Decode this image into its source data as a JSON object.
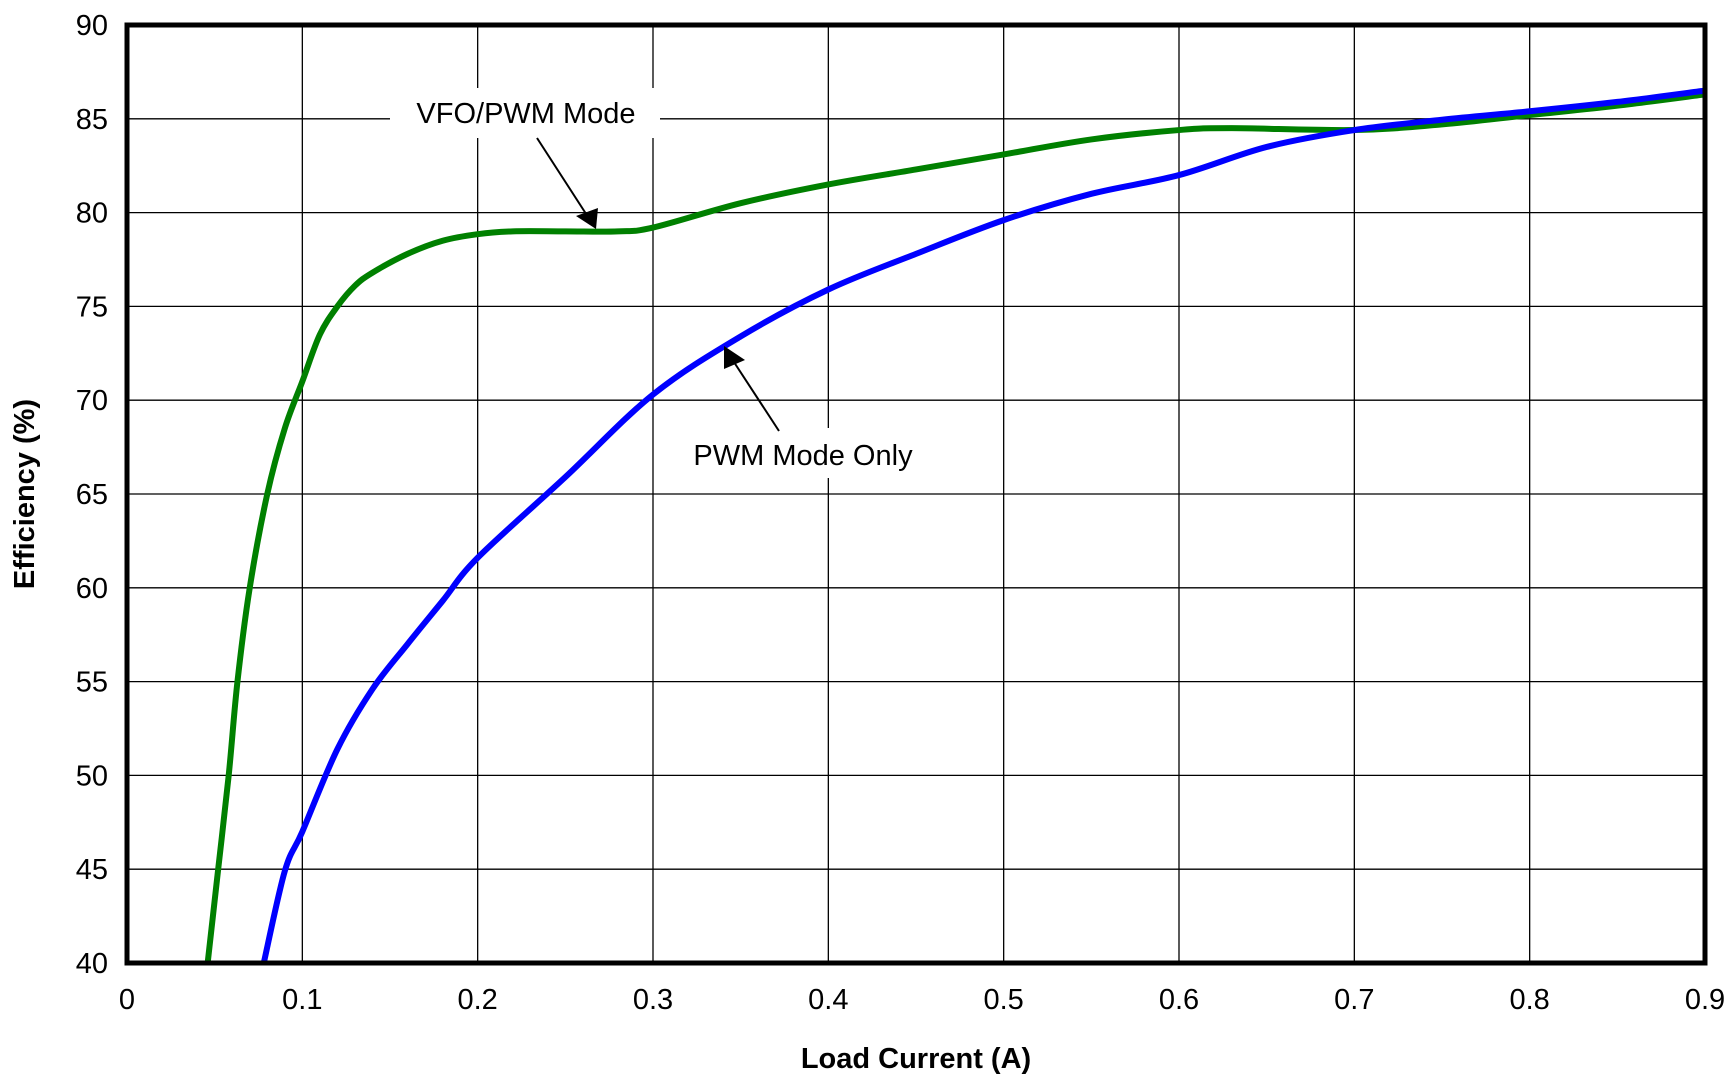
{
  "chart_data": {
    "type": "line",
    "title": "",
    "xlabel": "Load Current (A)",
    "ylabel": "Efficiency (%)",
    "xlim": [
      0,
      0.9
    ],
    "ylim": [
      40,
      90
    ],
    "xticks": [
      "0",
      "0.1",
      "0.2",
      "0.3",
      "0.4",
      "0.5",
      "0.6",
      "0.7",
      "0.8",
      "0.9"
    ],
    "yticks": [
      "40",
      "45",
      "50",
      "55",
      "60",
      "65",
      "70",
      "75",
      "80",
      "85",
      "90"
    ],
    "grid": true,
    "series": [
      {
        "name": "VFO/PWM Mode",
        "color": "#008000",
        "x": [
          0.046,
          0.052,
          0.058,
          0.063,
          0.07,
          0.08,
          0.09,
          0.1,
          0.11,
          0.12,
          0.13,
          0.14,
          0.16,
          0.18,
          0.2,
          0.22,
          0.25,
          0.28,
          0.3,
          0.35,
          0.4,
          0.45,
          0.5,
          0.55,
          0.6,
          0.63,
          0.7,
          0.75,
          0.8,
          0.85,
          0.9
        ],
        "y": [
          40,
          45,
          50,
          55,
          60,
          65,
          68.5,
          71,
          73.5,
          75,
          76.1,
          76.8,
          77.8,
          78.5,
          78.85,
          79,
          79,
          79,
          79.2,
          80.5,
          81.5,
          82.3,
          83.1,
          83.9,
          84.4,
          84.5,
          84.4,
          84.7,
          85.2,
          85.7,
          86.3
        ]
      },
      {
        "name": "PWM Mode Only",
        "color": "#0000ff",
        "x": [
          0.078,
          0.09,
          0.1,
          0.12,
          0.14,
          0.16,
          0.18,
          0.2,
          0.25,
          0.3,
          0.35,
          0.4,
          0.45,
          0.5,
          0.55,
          0.6,
          0.65,
          0.7,
          0.75,
          0.8,
          0.85,
          0.9
        ],
        "y": [
          40,
          44.9,
          47,
          51.4,
          54.6,
          57,
          59.3,
          61.6,
          65.9,
          70.3,
          73.4,
          75.9,
          77.8,
          79.6,
          81,
          82,
          83.5,
          84.4,
          84.95,
          85.4,
          85.9,
          86.5
        ]
      }
    ],
    "annotations": [
      {
        "text": "VFO/PWM Mode",
        "points_to": [
          0.27,
          79
        ]
      },
      {
        "text": "PWM Mode Only",
        "points_to": [
          0.34,
          73.3
        ]
      }
    ]
  }
}
